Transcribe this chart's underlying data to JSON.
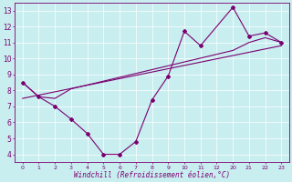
{
  "xlabel": "Windchill (Refroidissement éolien,°C)",
  "bg_color": "#c8eef0",
  "line_color": "#7b0070",
  "xlim": [
    -0.5,
    16.5
  ],
  "ylim": [
    3.5,
    13.5
  ],
  "xtick_labels": [
    "0",
    "1",
    "2",
    "3",
    "4",
    "5",
    "6",
    "7",
    "8",
    "9",
    "10",
    "11",
    "12",
    "20",
    "21",
    "22",
    "23"
  ],
  "xtick_pos": [
    0,
    1,
    2,
    3,
    4,
    5,
    6,
    7,
    8,
    9,
    10,
    11,
    12,
    13,
    14,
    15,
    16
  ],
  "yticks": [
    4,
    5,
    6,
    7,
    8,
    9,
    10,
    11,
    12,
    13
  ],
  "series1_x": [
    0,
    1,
    2,
    3,
    4,
    5,
    6,
    7,
    8,
    9,
    10,
    11,
    13,
    14,
    15,
    16
  ],
  "series1_y": [
    8.5,
    7.6,
    7.0,
    6.2,
    5.3,
    4.0,
    4.0,
    4.8,
    7.4,
    8.9,
    11.7,
    10.8,
    13.2,
    11.4,
    11.6,
    11.0
  ],
  "series2_x": [
    0,
    1,
    2,
    3,
    13,
    14,
    15,
    16
  ],
  "series2_y": [
    8.5,
    7.6,
    7.5,
    8.1,
    10.5,
    11.0,
    11.3,
    11.0
  ],
  "trend_x": [
    0,
    16
  ],
  "trend_y": [
    7.5,
    10.8
  ]
}
